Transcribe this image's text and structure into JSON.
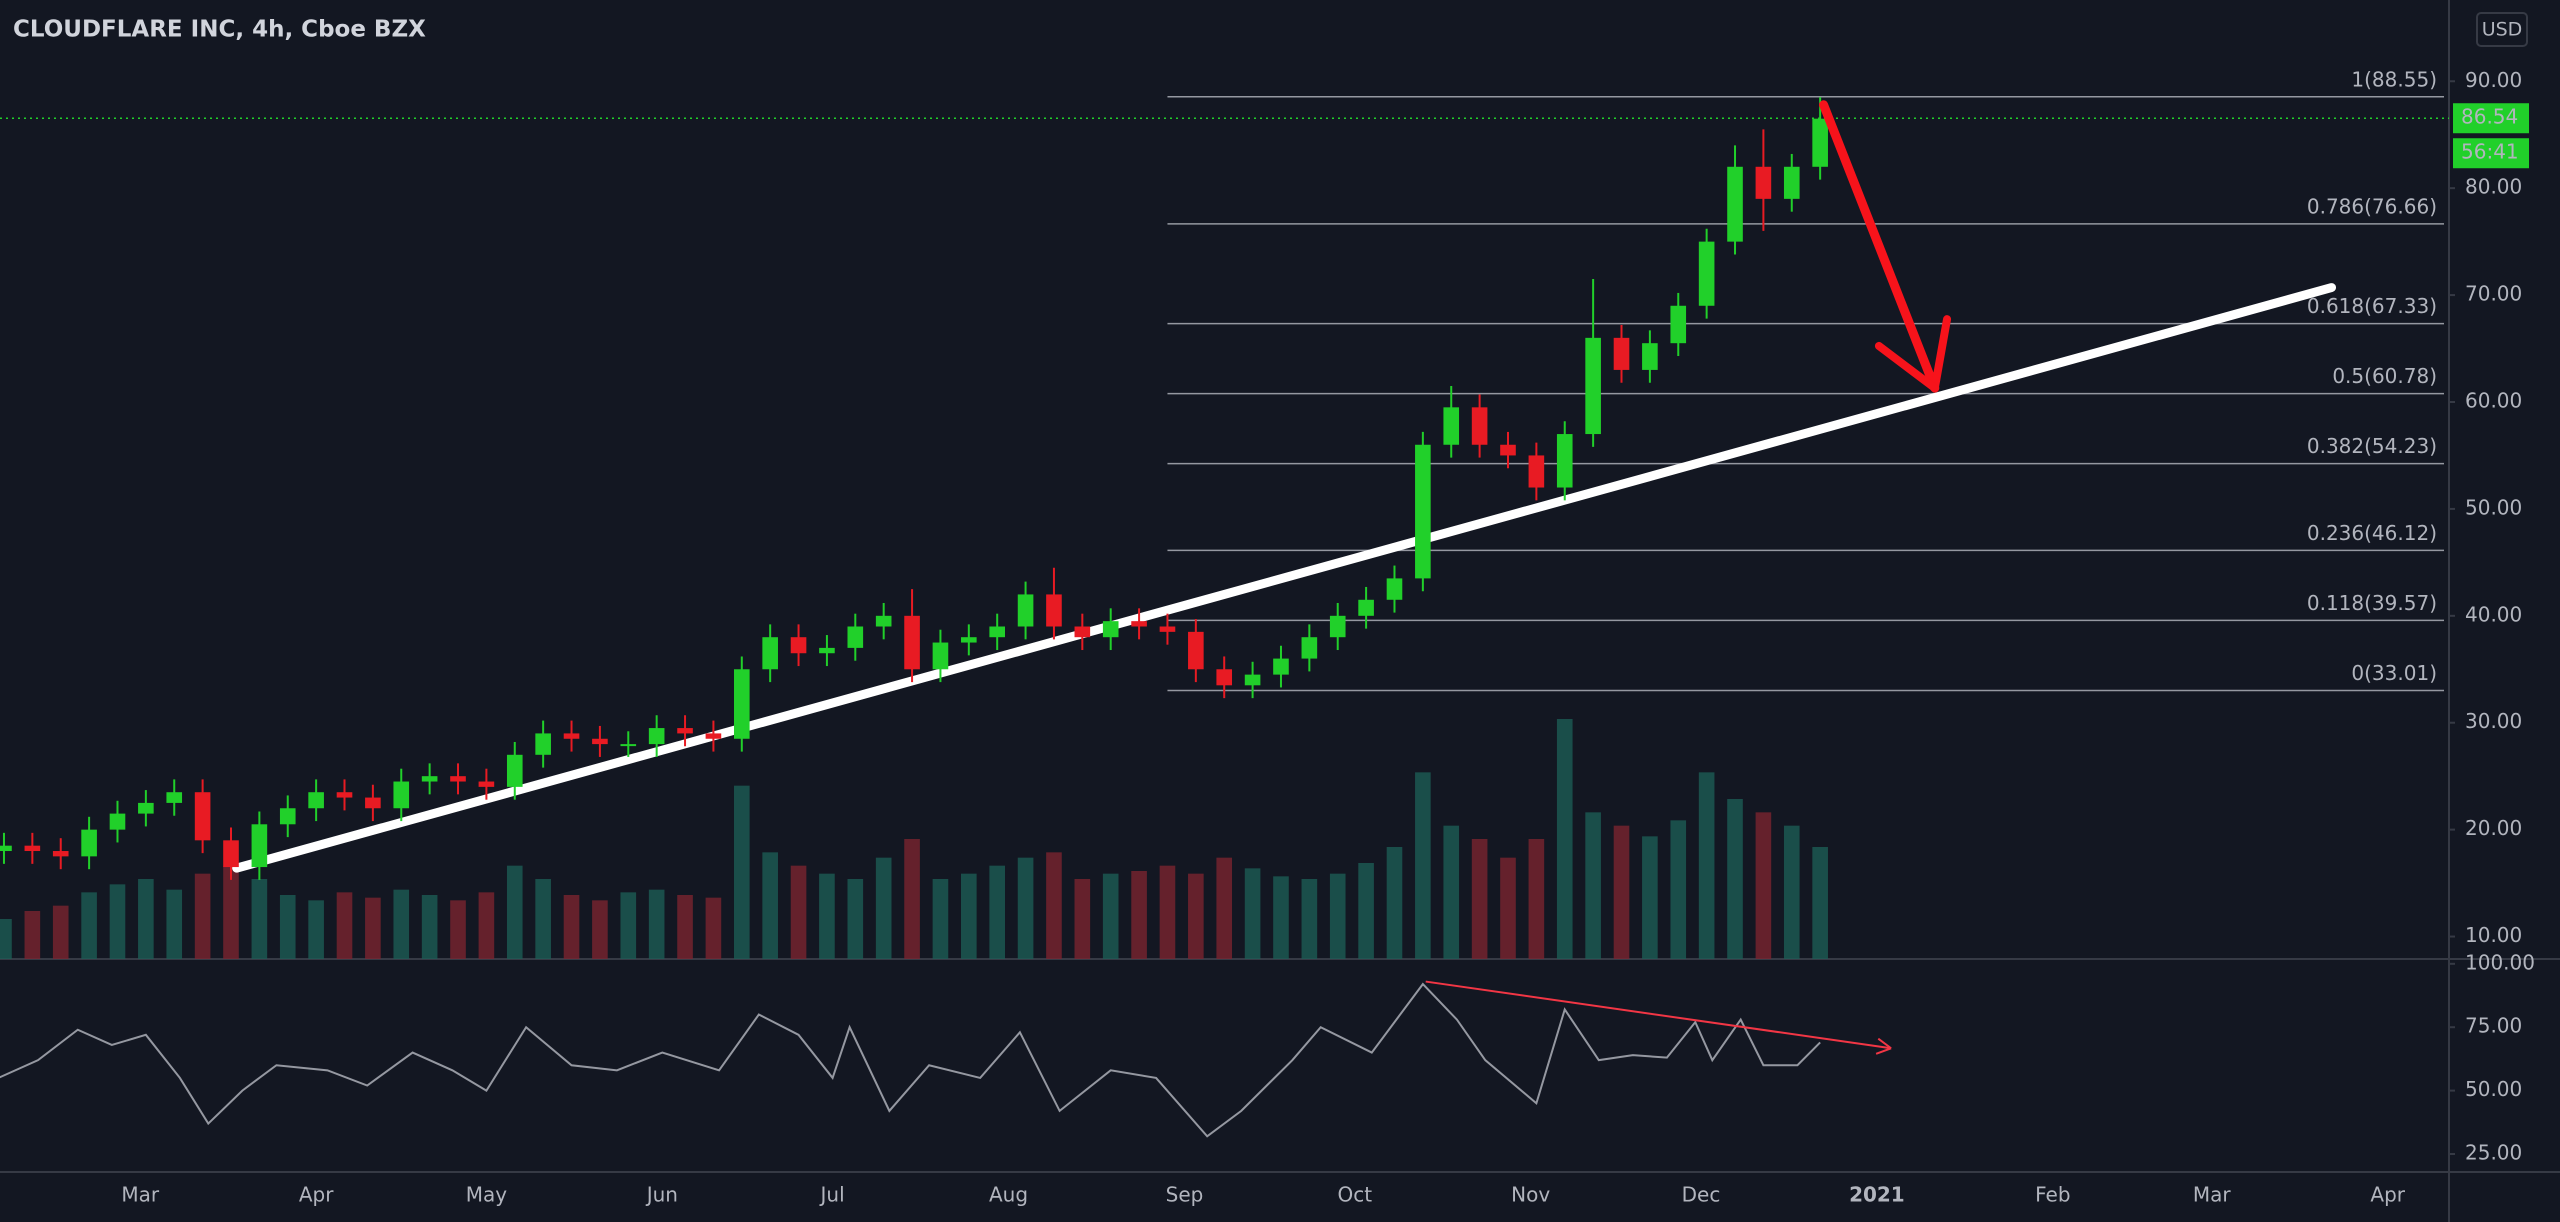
{
  "chart_data": {
    "type": "candlestick",
    "title": "CLOUDFLARE INC, 4h, Cboe BZX",
    "currency": "USD",
    "up_color": "#21d02a",
    "down_color": "#e81b23",
    "xlim": [
      35.3,
      466.8
    ],
    "xticks": [
      {
        "value": 60,
        "label": "Mar"
      },
      {
        "value": 91,
        "label": "Apr"
      },
      {
        "value": 121,
        "label": "May"
      },
      {
        "value": 152,
        "label": "Jun"
      },
      {
        "value": 182,
        "label": "Jul"
      },
      {
        "value": 213,
        "label": "Aug"
      },
      {
        "value": 244,
        "label": "Sep"
      },
      {
        "value": 274,
        "label": "Oct"
      },
      {
        "value": 305,
        "label": "Nov"
      },
      {
        "value": 335,
        "label": "Dec"
      },
      {
        "value": 366,
        "label": "2021"
      },
      {
        "value": 397,
        "label": "Feb"
      },
      {
        "value": 425,
        "label": "Mar"
      },
      {
        "value": 456,
        "label": "Apr"
      }
    ],
    "ylim": [
      7.9,
      97.6
    ],
    "yticks": [
      {
        "value": 10,
        "label": "10.00"
      },
      {
        "value": 20,
        "label": "20.00"
      },
      {
        "value": 30,
        "label": "30.00"
      },
      {
        "value": 40,
        "label": "40.00"
      },
      {
        "value": 50,
        "label": "50.00"
      },
      {
        "value": 60,
        "label": "60.00"
      },
      {
        "value": 70,
        "label": "70.00"
      },
      {
        "value": 80,
        "label": "80.00"
      },
      {
        "value": 90,
        "label": "90.00"
      }
    ],
    "candles": {
      "x": [
        36,
        41,
        46,
        51,
        56,
        61,
        66,
        71,
        76,
        81,
        86,
        91,
        96,
        101,
        106,
        111,
        116,
        121,
        126,
        131,
        136,
        141,
        146,
        151,
        156,
        161,
        166,
        171,
        176,
        181,
        186,
        191,
        196,
        201,
        206,
        211,
        216,
        221,
        226,
        231,
        236,
        241,
        246,
        251,
        256,
        261,
        266,
        271,
        276,
        281,
        286,
        291,
        296,
        301,
        306,
        311,
        316,
        321,
        326,
        331,
        336,
        341,
        346,
        351,
        356
      ],
      "open": [
        18,
        18.5,
        18,
        17.5,
        20,
        21.5,
        22.5,
        23.5,
        19,
        16.5,
        20.5,
        22,
        23.5,
        23,
        22,
        24.5,
        25,
        24.5,
        24,
        27,
        29,
        28.5,
        28,
        28,
        29.5,
        29,
        28.5,
        35,
        38,
        36.5,
        37,
        39,
        40,
        35,
        37.5,
        38,
        39,
        42,
        39,
        38,
        39.5,
        39,
        38.5,
        35,
        33.5,
        34.5,
        36,
        38,
        40,
        41.5,
        43.5,
        56,
        59.5,
        56,
        55,
        52,
        57,
        66,
        63,
        65.5,
        69,
        75,
        82,
        79,
        82
      ],
      "high": [
        19.7,
        19.7,
        19.2,
        21.2,
        22.7,
        23.7,
        24.7,
        24.7,
        20.2,
        21.7,
        23.2,
        24.7,
        24.7,
        24.2,
        25.7,
        26.2,
        26.2,
        25.7,
        28.2,
        30.2,
        30.2,
        29.7,
        29.2,
        30.7,
        30.7,
        30.2,
        36.2,
        39.2,
        39.2,
        38.2,
        40.2,
        41.2,
        42.5,
        38.7,
        39.2,
        40.2,
        43.2,
        44.5,
        40.2,
        40.7,
        40.7,
        40.2,
        39.7,
        36.2,
        35.7,
        37.2,
        39.2,
        41.2,
        42.7,
        44.7,
        57.2,
        61.5,
        60.7,
        57.2,
        56.2,
        58.2,
        71.5,
        67.2,
        66.7,
        70.2,
        76.2,
        84,
        85.5,
        83.2,
        88.5
      ],
      "low": [
        16.8,
        16.8,
        16.3,
        16.3,
        18.8,
        20.3,
        21.3,
        17.8,
        15.3,
        15.3,
        19.3,
        20.8,
        21.8,
        20.8,
        20.8,
        23.3,
        23.3,
        22.8,
        22.8,
        25.8,
        27.3,
        26.8,
        26.8,
        26.8,
        27.8,
        27.3,
        27.3,
        33.8,
        35.3,
        35.3,
        35.8,
        37.8,
        33.8,
        33.8,
        36.3,
        36.8,
        37.8,
        37.8,
        36.8,
        36.8,
        37.8,
        37.3,
        33.8,
        32.3,
        32.3,
        33.3,
        34.8,
        36.8,
        38.8,
        40.3,
        42.3,
        54.8,
        54.8,
        53.8,
        50.8,
        50.8,
        55.8,
        61.8,
        61.8,
        64.3,
        67.8,
        73.8,
        76,
        77.8,
        80.8
      ],
      "close": [
        18.5,
        18,
        17.5,
        20,
        21.5,
        22.5,
        23.5,
        19,
        16.5,
        20.5,
        22,
        23.5,
        23,
        22,
        24.5,
        25,
        24.5,
        24,
        27,
        29,
        28.5,
        28,
        28,
        29.5,
        29,
        28.5,
        35,
        38,
        36.5,
        37,
        39,
        40,
        35,
        37.5,
        38,
        39,
        42,
        39,
        38,
        39.5,
        39,
        38.5,
        35,
        33.5,
        34.5,
        36,
        38,
        40,
        41.5,
        43.5,
        56,
        59.5,
        56,
        55,
        52,
        57,
        66,
        63,
        65.5,
        69,
        75,
        82,
        79,
        82,
        86.5
      ],
      "volume": [
        1.5,
        1.8,
        2,
        2.5,
        2.8,
        3,
        2.6,
        3.2,
        3.5,
        3,
        2.4,
        2.2,
        2.5,
        2.3,
        2.6,
        2.4,
        2.2,
        2.5,
        3.5,
        3,
        2.4,
        2.2,
        2.5,
        2.6,
        2.4,
        2.3,
        6.5,
        4,
        3.5,
        3.2,
        3,
        3.8,
        4.5,
        3,
        3.2,
        3.5,
        3.8,
        4,
        3,
        3.2,
        3.3,
        3.5,
        3.2,
        3.8,
        3.4,
        3.1,
        3,
        3.2,
        3.6,
        4.2,
        7,
        5,
        4.5,
        3.8,
        4.5,
        9,
        5.5,
        5,
        4.6,
        5.2,
        7,
        6,
        5.5,
        5,
        4.2
      ]
    },
    "last_price": 86.54,
    "countdown": "56:41",
    "fib_start": 241,
    "fib_levels": [
      {
        "value": 88.55,
        "label": "1(88.55)"
      },
      {
        "value": 76.66,
        "label": "0.786(76.66)"
      },
      {
        "value": 67.33,
        "label": "0.618(67.33)"
      },
      {
        "value": 60.78,
        "label": "0.5(60.78)"
      },
      {
        "value": 54.23,
        "label": "0.382(54.23)"
      },
      {
        "value": 46.12,
        "label": "0.236(46.12)"
      },
      {
        "value": 39.57,
        "label": "0.118(39.57)"
      },
      {
        "value": 33.01,
        "label": "0(33.01)"
      }
    ],
    "trendline": {
      "x": [
        77,
        446.1
      ],
      "y": [
        16.4,
        70.7
      ],
      "color": "#ffffff"
    },
    "arrow": {
      "x": [
        356.6,
        376.2
      ],
      "y": [
        87.8,
        61.3
      ],
      "color": "#f7131b"
    },
    "rsi": {
      "ylim": [
        17.9,
        101.9
      ],
      "yticks": [
        {
          "value": 25,
          "label": "25.00"
        },
        {
          "value": 50,
          "label": "50.00"
        },
        {
          "value": 75,
          "label": "75.00"
        },
        {
          "value": 100,
          "label": "100.00"
        }
      ],
      "color": "#9598a1",
      "x": [
        35,
        42,
        49,
        55,
        61,
        67,
        72,
        78,
        84,
        93,
        100,
        108,
        115,
        121,
        128,
        136,
        144,
        152,
        162,
        169,
        176,
        182,
        185,
        192,
        199,
        208,
        215,
        222,
        231,
        239,
        248,
        254,
        263,
        268,
        277,
        286,
        292,
        297,
        306,
        311,
        317,
        323,
        329,
        334,
        337,
        342,
        346,
        352,
        356
      ],
      "values": [
        55,
        62,
        74,
        68,
        72,
        55,
        37,
        50,
        60,
        58,
        52,
        65,
        58,
        50,
        75,
        60,
        58,
        65,
        58,
        80,
        72,
        55,
        75,
        42,
        60,
        55,
        73,
        42,
        58,
        55,
        32,
        42,
        62,
        75,
        65,
        92,
        78,
        62,
        45,
        82,
        62,
        64,
        63,
        77,
        62,
        78,
        60,
        60,
        69
      ],
      "trendline": {
        "x": [
          286.5,
          368.5
        ],
        "y": [
          93,
          66.7
        ],
        "color": "#f23645"
      }
    }
  }
}
